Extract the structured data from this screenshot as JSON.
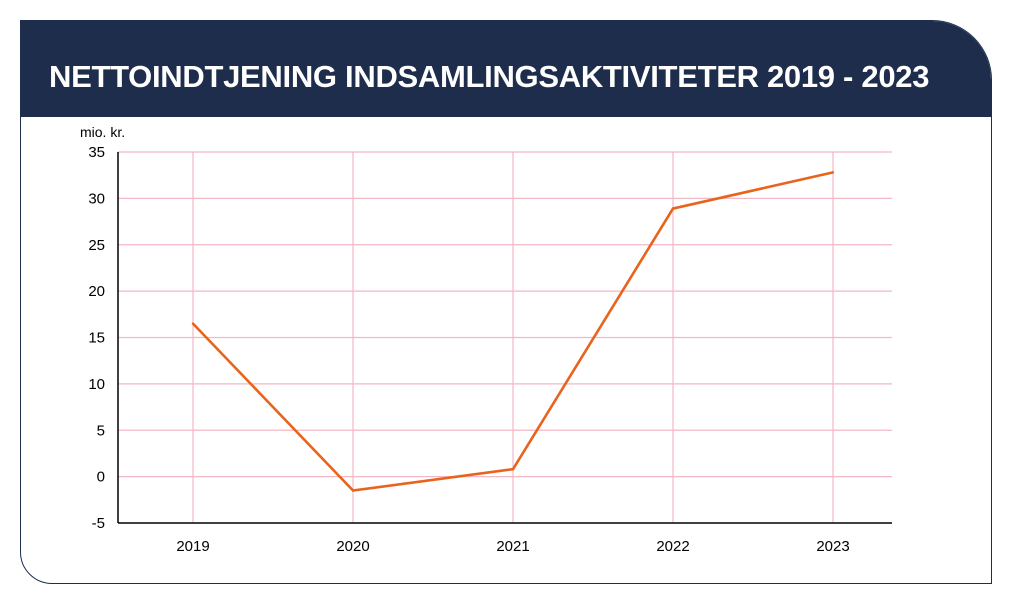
{
  "title": "NETTOINDTJENING INDSAMLINGSAKTIVITETER 2019 - 2023",
  "colors": {
    "header_bg": "#1f2d4d",
    "line": "#e8641c",
    "grid": "#f2b8c6"
  },
  "chart_data": {
    "type": "line",
    "title": "NETTOINDTJENING INDSAMLINGSAKTIVITETER 2019 - 2023",
    "ylabel": "mio. kr.",
    "xlabel": "",
    "categories": [
      "2019",
      "2020",
      "2021",
      "2022",
      "2023"
    ],
    "series": [
      {
        "values": [
          16.5,
          -1.5,
          0.8,
          28.9,
          32.8
        ]
      }
    ],
    "ylim": [
      -5,
      35
    ],
    "yticks": [
      35,
      30,
      25,
      20,
      15,
      10,
      5,
      0,
      -5
    ],
    "grid": true,
    "legend": "none"
  }
}
